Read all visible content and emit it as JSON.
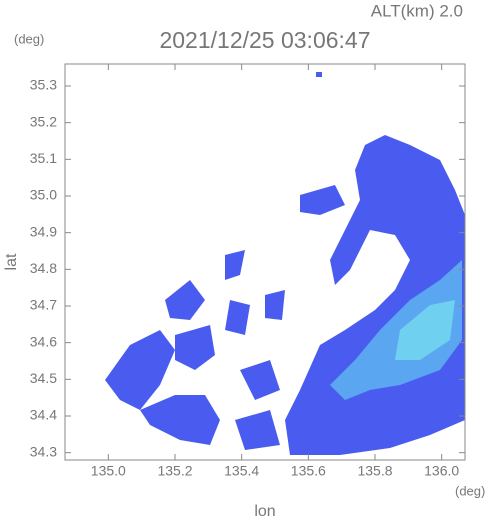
{
  "chart_data": {
    "type": "radar-map",
    "title": "2021/12/25 03:06:47",
    "annotation": "ALT(km) 2.0",
    "x_label": "lon",
    "x_unit": "(deg)",
    "y_label": "lat",
    "y_unit": "(deg)",
    "xlim": [
      134.87,
      136.07
    ],
    "xticks": [
      {
        "value": 135,
        "label": "135.0"
      },
      135.2,
      135.4,
      135.6,
      135.8,
      {
        "value": 136,
        "label": "136.0"
      }
    ],
    "ylim": [
      34.28,
      35.36
    ],
    "yticks": [
      34.3,
      34.4,
      34.5,
      34.6,
      34.7,
      34.8,
      34.9,
      {
        "value": 35,
        "label": "35.0"
      },
      35.1,
      35.2,
      35.3
    ]
  }
}
